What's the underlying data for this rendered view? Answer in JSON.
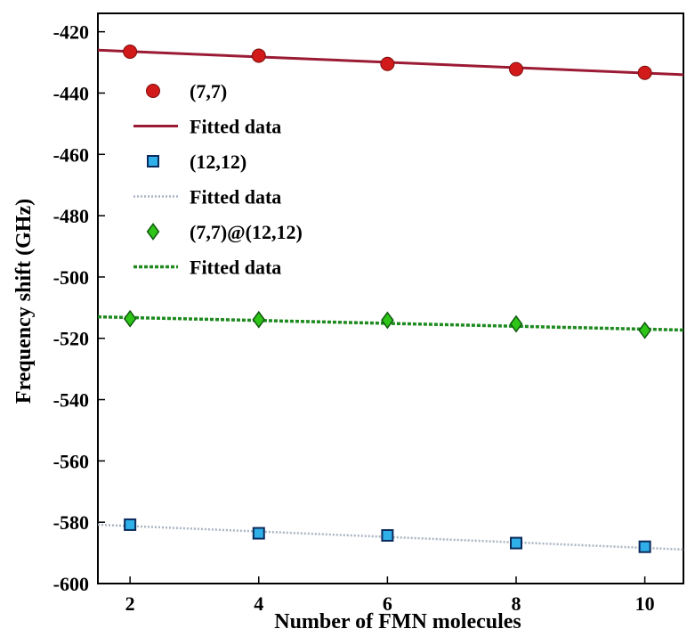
{
  "chart_data": {
    "type": "line",
    "xlabel": "Number of FMN molecules",
    "ylabel": "Frequency shift (GHz)",
    "xlim": [
      1.5,
      10.6
    ],
    "ylim": [
      -600,
      -414
    ],
    "x_ticks": [
      2,
      4,
      6,
      8,
      10
    ],
    "y_ticks": [
      -420,
      -440,
      -460,
      -480,
      -500,
      -520,
      -540,
      -560,
      -580,
      -600
    ],
    "grid": false,
    "legend_position": "upper-left",
    "series": [
      {
        "name": "(7,7)",
        "kind": "markers",
        "marker": "circle",
        "color": "#d21a1a",
        "x": [
          2,
          4,
          6,
          8,
          10
        ],
        "y": [
          -426.5,
          -427.8,
          -430.5,
          -432.2,
          -433.4
        ]
      },
      {
        "name": "Fitted data",
        "kind": "line",
        "line_style": "solid",
        "color": "#9c1b34",
        "x": [
          1.5,
          10.6
        ],
        "y": [
          -426.0,
          -434.0
        ]
      },
      {
        "name": "(12,12)",
        "kind": "markers",
        "marker": "square",
        "color": "#2fb0e8",
        "x": [
          2,
          4,
          6,
          8,
          10
        ],
        "y": [
          -580.8,
          -583.6,
          -584.3,
          -586.8,
          -588.0
        ]
      },
      {
        "name": "Fitted data",
        "kind": "line",
        "line_style": "dotted",
        "color": "#a9b4c2",
        "x": [
          1.5,
          10.6
        ],
        "y": [
          -580.8,
          -588.9
        ]
      },
      {
        "name": "(7,7)@(12,12)",
        "kind": "markers",
        "marker": "diamond",
        "color": "#2ec418",
        "x": [
          2,
          4,
          6,
          8,
          10
        ],
        "y": [
          -513.6,
          -513.9,
          -514.1,
          -515.3,
          -517.4
        ]
      },
      {
        "name": "Fitted data",
        "kind": "line",
        "line_style": "dashed",
        "color": "#1f8a1f",
        "x": [
          1.5,
          10.6
        ],
        "y": [
          -513.0,
          -517.3
        ]
      }
    ]
  }
}
